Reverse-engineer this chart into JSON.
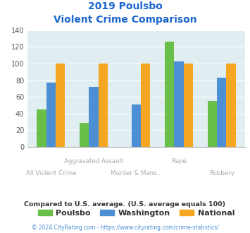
{
  "title_line1": "2019 Poulsbo",
  "title_line2": "Violent Crime Comparison",
  "categories": [
    "All Violent Crime",
    "Aggravated Assault",
    "Murder & Mans...",
    "Rape",
    "Robbery"
  ],
  "row1_labels": [
    "",
    "Aggravated Assault",
    "",
    "Rape",
    ""
  ],
  "row2_labels": [
    "All Violent Crime",
    "",
    "Murder & Mans...",
    "",
    "Robbery"
  ],
  "poulsbo": [
    45,
    29,
    0,
    126,
    55
  ],
  "washington": [
    77,
    72,
    51,
    103,
    83
  ],
  "national": [
    100,
    100,
    100,
    100,
    100
  ],
  "color_poulsbo": "#6abf4b",
  "color_washington": "#4d8fd4",
  "color_national": "#f5a623",
  "ylim": [
    0,
    140
  ],
  "yticks": [
    0,
    20,
    40,
    60,
    80,
    100,
    120,
    140
  ],
  "title_color": "#1a66cc",
  "subtitle_note": "Compared to U.S. average. (U.S. average equals 100)",
  "subtitle_note_color": "#333333",
  "footer": "© 2024 CityRating.com - https://www.cityrating.com/crime-statistics/",
  "footer_color": "#4d8fd4",
  "bg_plot": "#e0eef2",
  "bg_fig": "#ffffff",
  "legend_labels": [
    "Poulsbo",
    "Washington",
    "National"
  ],
  "bar_width": 0.22
}
